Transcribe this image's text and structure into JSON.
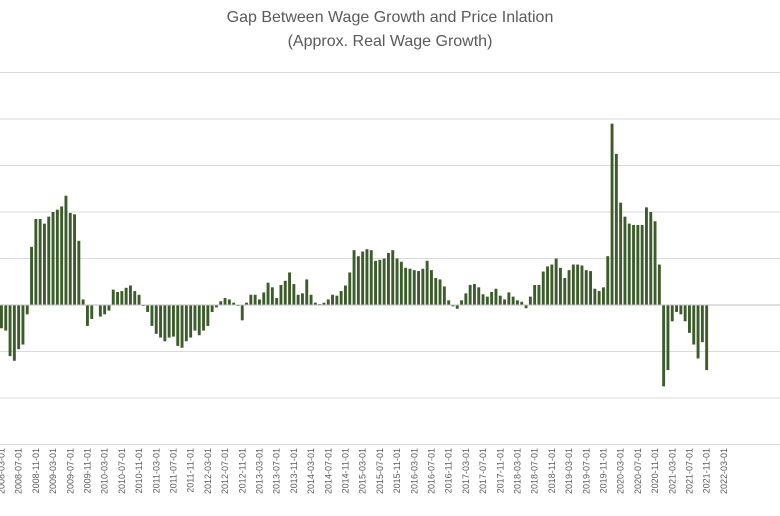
{
  "chart_data": {
    "type": "bar",
    "title": "Gap Between Wage Growth and Price Inlation",
    "subtitle": "(Approx. Real Wage Growth)",
    "xlabel": "",
    "ylabel": "",
    "grid": true,
    "ylim": [
      -3,
      5
    ],
    "colors": {
      "bar": "#3d5c2b",
      "grid": "#d9d9d9",
      "axis": "#bfbfbf",
      "text": "#595959"
    },
    "x_tick_labels": [
      "2008-03-01",
      "2008-07-01",
      "2008-11-01",
      "2009-03-01",
      "2009-07-01",
      "2009-11-01",
      "2010-03-01",
      "2010-07-01",
      "2010-11-01",
      "2011-03-01",
      "2011-07-01",
      "2011-11-01",
      "2012-03-01",
      "2012-07-01",
      "2012-11-01",
      "2013-03-01",
      "2013-07-01",
      "2013-11-01",
      "2014-03-01",
      "2014-07-01",
      "2014-11-01",
      "2015-03-01",
      "2015-07-01",
      "2015-11-01",
      "2016-03-01",
      "2016-07-01",
      "2016-11-01",
      "2017-03-01",
      "2017-07-01",
      "2017-11-01",
      "2018-03-01",
      "2018-07-01",
      "2018-11-01",
      "2019-03-01",
      "2019-07-01",
      "2019-11-01",
      "2020-03-01",
      "2020-07-01",
      "2020-11-01",
      "2021-03-01",
      "2021-07-01",
      "2021-11-01",
      "2022-03-01"
    ],
    "values": [
      -0.5,
      -0.55,
      -1.1,
      -1.2,
      -0.95,
      -0.85,
      -0.2,
      1.25,
      1.85,
      1.85,
      1.75,
      1.9,
      2.0,
      2.05,
      2.12,
      2.35,
      1.98,
      1.95,
      1.38,
      0.12,
      -0.45,
      -0.3,
      0,
      -0.25,
      -0.2,
      -0.12,
      0.33,
      0.28,
      0.3,
      0.37,
      0.42,
      0.3,
      0.22,
      -0.02,
      -0.15,
      -0.45,
      -0.62,
      -0.7,
      -0.78,
      -0.7,
      -0.68,
      -0.88,
      -0.92,
      -0.78,
      -0.7,
      -0.55,
      -0.65,
      -0.55,
      -0.45,
      -0.15,
      -0.05,
      0.08,
      0.15,
      0.12,
      0.05,
      -0.02,
      -0.33,
      0.05,
      0.22,
      0.22,
      0.12,
      0.27,
      0.48,
      0.38,
      0.15,
      0.43,
      0.52,
      0.7,
      0.45,
      0.22,
      0.25,
      0.55,
      0.22,
      0.05,
      0.02,
      0.05,
      0.12,
      0.22,
      0.2,
      0.3,
      0.42,
      0.7,
      1.18,
      1.05,
      1.15,
      1.2,
      1.18,
      0.95,
      0.97,
      1.0,
      1.12,
      1.18,
      1.0,
      0.93,
      0.8,
      0.78,
      0.75,
      0.73,
      0.78,
      0.95,
      0.75,
      0.58,
      0.55,
      0.4,
      0.1,
      -0.03,
      -0.08,
      0.1,
      0.25,
      0.43,
      0.45,
      0.38,
      0.23,
      0.18,
      0.28,
      0.35,
      0.2,
      0.12,
      0.27,
      0.18,
      0.1,
      0.07,
      -0.07,
      0.18,
      0.43,
      0.43,
      0.72,
      0.83,
      0.87,
      1.0,
      0.8,
      0.58,
      0.75,
      0.87,
      0.87,
      0.85,
      0.75,
      0.73,
      0.35,
      0.3,
      0.38,
      1.05,
      3.9,
      3.25,
      2.2,
      1.9,
      1.75,
      1.72,
      1.72,
      1.72,
      2.1,
      2.0,
      1.8,
      0.87,
      -1.75,
      -1.4,
      -0.35,
      -0.15,
      -0.2,
      -0.35,
      -0.6,
      -0.85,
      -1.15,
      -0.8,
      -1.4
    ]
  }
}
